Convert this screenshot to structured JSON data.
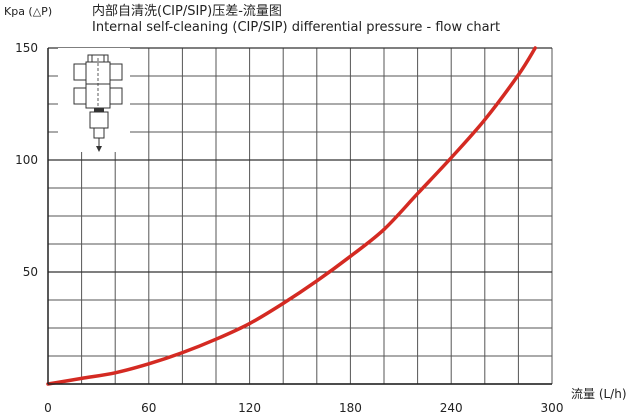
{
  "chart_data": {
    "type": "line",
    "title": "内部自清洗(CIP/SIP)压差-流量图",
    "subtitle": "Internal self-cleaning (CIP/SIP) differential pressure - flow chart",
    "ylabel": "Kpa (△P)",
    "xlabel": "流量 (L/h)",
    "xlim": [
      0,
      300
    ],
    "ylim": [
      0,
      150
    ],
    "x_ticks": [
      0,
      60,
      120,
      180,
      240,
      300
    ],
    "y_ticks": [
      50,
      100,
      150
    ],
    "grid": true,
    "series": [
      {
        "color": "#d42a22",
        "x": [
          0,
          20,
          40,
          60,
          80,
          100,
          120,
          140,
          160,
          180,
          200,
          220,
          240,
          260,
          280,
          290
        ],
        "y": [
          0,
          2.5,
          5,
          9,
          14,
          20,
          27,
          36,
          46,
          57,
          69,
          85,
          101,
          118,
          138,
          150
        ]
      }
    ]
  },
  "icon": "valve-diagram-icon"
}
